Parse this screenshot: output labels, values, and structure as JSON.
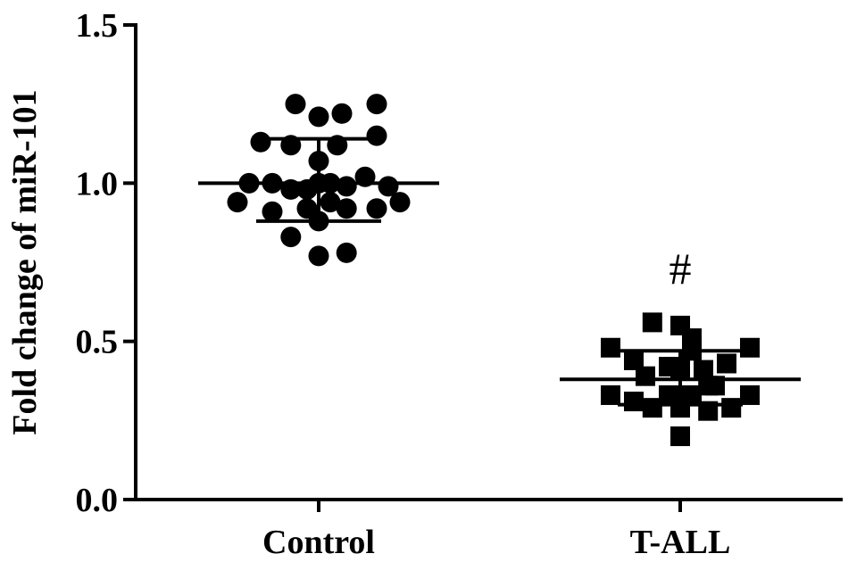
{
  "chart_data": {
    "type": "scatter",
    "title": "",
    "xlabel": "",
    "ylabel": "Fold change of miR-101",
    "ylim": [
      0,
      1.5
    ],
    "y_ticks": [
      "0.0",
      "0.5",
      "1.0",
      "1.5"
    ],
    "categories": [
      "Control",
      "T-ALL"
    ],
    "grid": false,
    "legend": "none",
    "annotations": [
      {
        "category": "T-ALL",
        "text": "#"
      }
    ],
    "series": [
      {
        "category": "Control",
        "marker": "circle",
        "color": "#000000",
        "mean": 1.0,
        "sd_upper": 1.14,
        "sd_lower": 0.88,
        "points": [
          {
            "x": -0.3,
            "y": 1.0
          },
          {
            "x": -0.35,
            "y": 0.94
          },
          {
            "x": -0.2,
            "y": 1.0
          },
          {
            "x": -0.2,
            "y": 0.91
          },
          {
            "x": -0.25,
            "y": 1.13
          },
          {
            "x": -0.12,
            "y": 1.12
          },
          {
            "x": -0.12,
            "y": 0.98
          },
          {
            "x": -0.12,
            "y": 0.83
          },
          {
            "x": -0.1,
            "y": 1.25
          },
          {
            "x": -0.05,
            "y": 0.92
          },
          {
            "x": -0.05,
            "y": 0.98
          },
          {
            "x": 0.0,
            "y": 1.07
          },
          {
            "x": 0.0,
            "y": 1.0
          },
          {
            "x": 0.0,
            "y": 0.88
          },
          {
            "x": 0.0,
            "y": 1.21
          },
          {
            "x": 0.0,
            "y": 0.77
          },
          {
            "x": 0.05,
            "y": 0.94
          },
          {
            "x": 0.05,
            "y": 1.0
          },
          {
            "x": 0.08,
            "y": 1.12
          },
          {
            "x": 0.1,
            "y": 1.22
          },
          {
            "x": 0.12,
            "y": 0.92
          },
          {
            "x": 0.12,
            "y": 0.78
          },
          {
            "x": 0.12,
            "y": 0.99
          },
          {
            "x": 0.2,
            "y": 1.02
          },
          {
            "x": 0.25,
            "y": 1.25
          },
          {
            "x": 0.25,
            "y": 1.15
          },
          {
            "x": 0.25,
            "y": 0.92
          },
          {
            "x": 0.3,
            "y": 0.99
          },
          {
            "x": 0.35,
            "y": 0.94
          }
        ]
      },
      {
        "category": "T-ALL",
        "marker": "square",
        "color": "#000000",
        "mean": 0.38,
        "sd_upper": 0.47,
        "sd_lower": 0.3,
        "points": [
          {
            "x": -0.3,
            "y": 0.48
          },
          {
            "x": -0.3,
            "y": 0.33
          },
          {
            "x": -0.2,
            "y": 0.44
          },
          {
            "x": -0.2,
            "y": 0.31
          },
          {
            "x": -0.15,
            "y": 0.39
          },
          {
            "x": -0.12,
            "y": 0.56
          },
          {
            "x": -0.12,
            "y": 0.29
          },
          {
            "x": -0.05,
            "y": 0.42
          },
          {
            "x": -0.05,
            "y": 0.33
          },
          {
            "x": 0.0,
            "y": 0.2
          },
          {
            "x": 0.0,
            "y": 0.41
          },
          {
            "x": 0.0,
            "y": 0.29
          },
          {
            "x": 0.0,
            "y": 0.55
          },
          {
            "x": 0.05,
            "y": 0.47
          },
          {
            "x": 0.05,
            "y": 0.33
          },
          {
            "x": 0.05,
            "y": 0.51
          },
          {
            "x": 0.1,
            "y": 0.41
          },
          {
            "x": 0.12,
            "y": 0.28
          },
          {
            "x": 0.15,
            "y": 0.36
          },
          {
            "x": 0.2,
            "y": 0.43
          },
          {
            "x": 0.22,
            "y": 0.29
          },
          {
            "x": 0.3,
            "y": 0.48
          },
          {
            "x": 0.3,
            "y": 0.33
          },
          {
            "x": 0.12,
            "y": 0.36
          }
        ]
      }
    ]
  }
}
